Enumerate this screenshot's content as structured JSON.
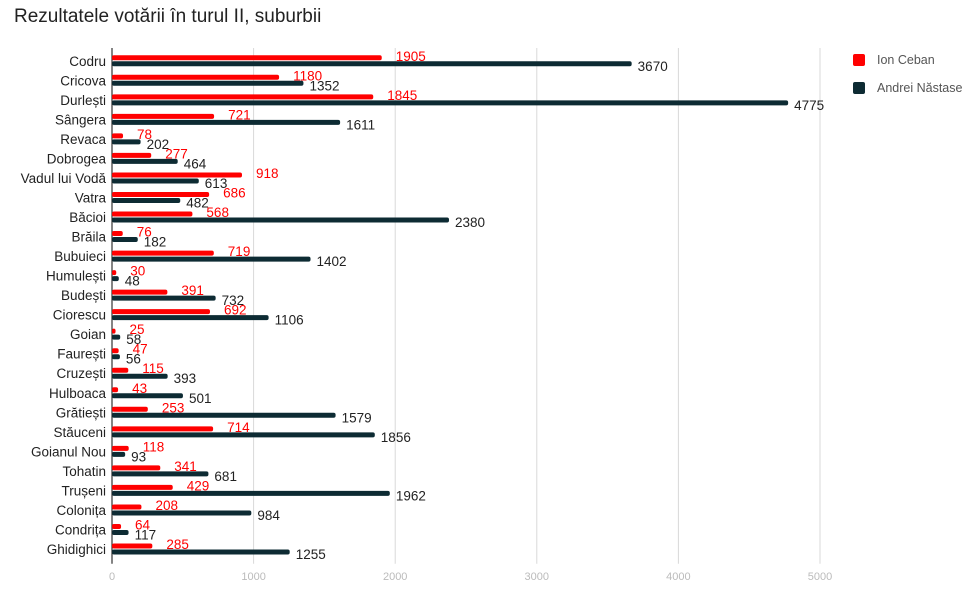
{
  "chart_data": {
    "type": "bar",
    "orientation": "horizontal",
    "title": "Rezultatele votării în turul II, suburbii",
    "xlabel": "",
    "ylabel": "",
    "xlim": [
      0,
      5000
    ],
    "xticks": [
      0,
      1000,
      2000,
      3000,
      4000,
      5000
    ],
    "grid": true,
    "legend_position": "top-right",
    "categories": [
      "Codru",
      "Cricova",
      "Durlești",
      "Sângera",
      "Revaca",
      "Dobrogea",
      "Vadul lui Vodă",
      "Vatra",
      "Băcioi",
      "Brăila",
      "Bubuieci",
      "Humulești",
      "Budești",
      "Ciorescu",
      "Goian",
      "Faurești",
      "Cruzești",
      "Hulboaca",
      "Grătiești",
      "Stăuceni",
      "Goianul Nou",
      "Tohatin",
      "Trușeni",
      "Colonița",
      "Condrița",
      "Ghidighici"
    ],
    "series": [
      {
        "name": "Ion Ceban",
        "color": "#ff0000",
        "values": [
          1905,
          1180,
          1845,
          721,
          78,
          277,
          918,
          686,
          568,
          76,
          719,
          30,
          391,
          692,
          25,
          47,
          115,
          43,
          253,
          714,
          118,
          341,
          429,
          208,
          64,
          285
        ]
      },
      {
        "name": "Andrei Năstase",
        "color": "#0d2b33",
        "values": [
          3670,
          1352,
          4775,
          1611,
          202,
          464,
          613,
          482,
          2380,
          182,
          1402,
          48,
          732,
          1106,
          58,
          56,
          393,
          501,
          1579,
          1856,
          93,
          681,
          1962,
          984,
          117,
          1255
        ]
      }
    ]
  }
}
